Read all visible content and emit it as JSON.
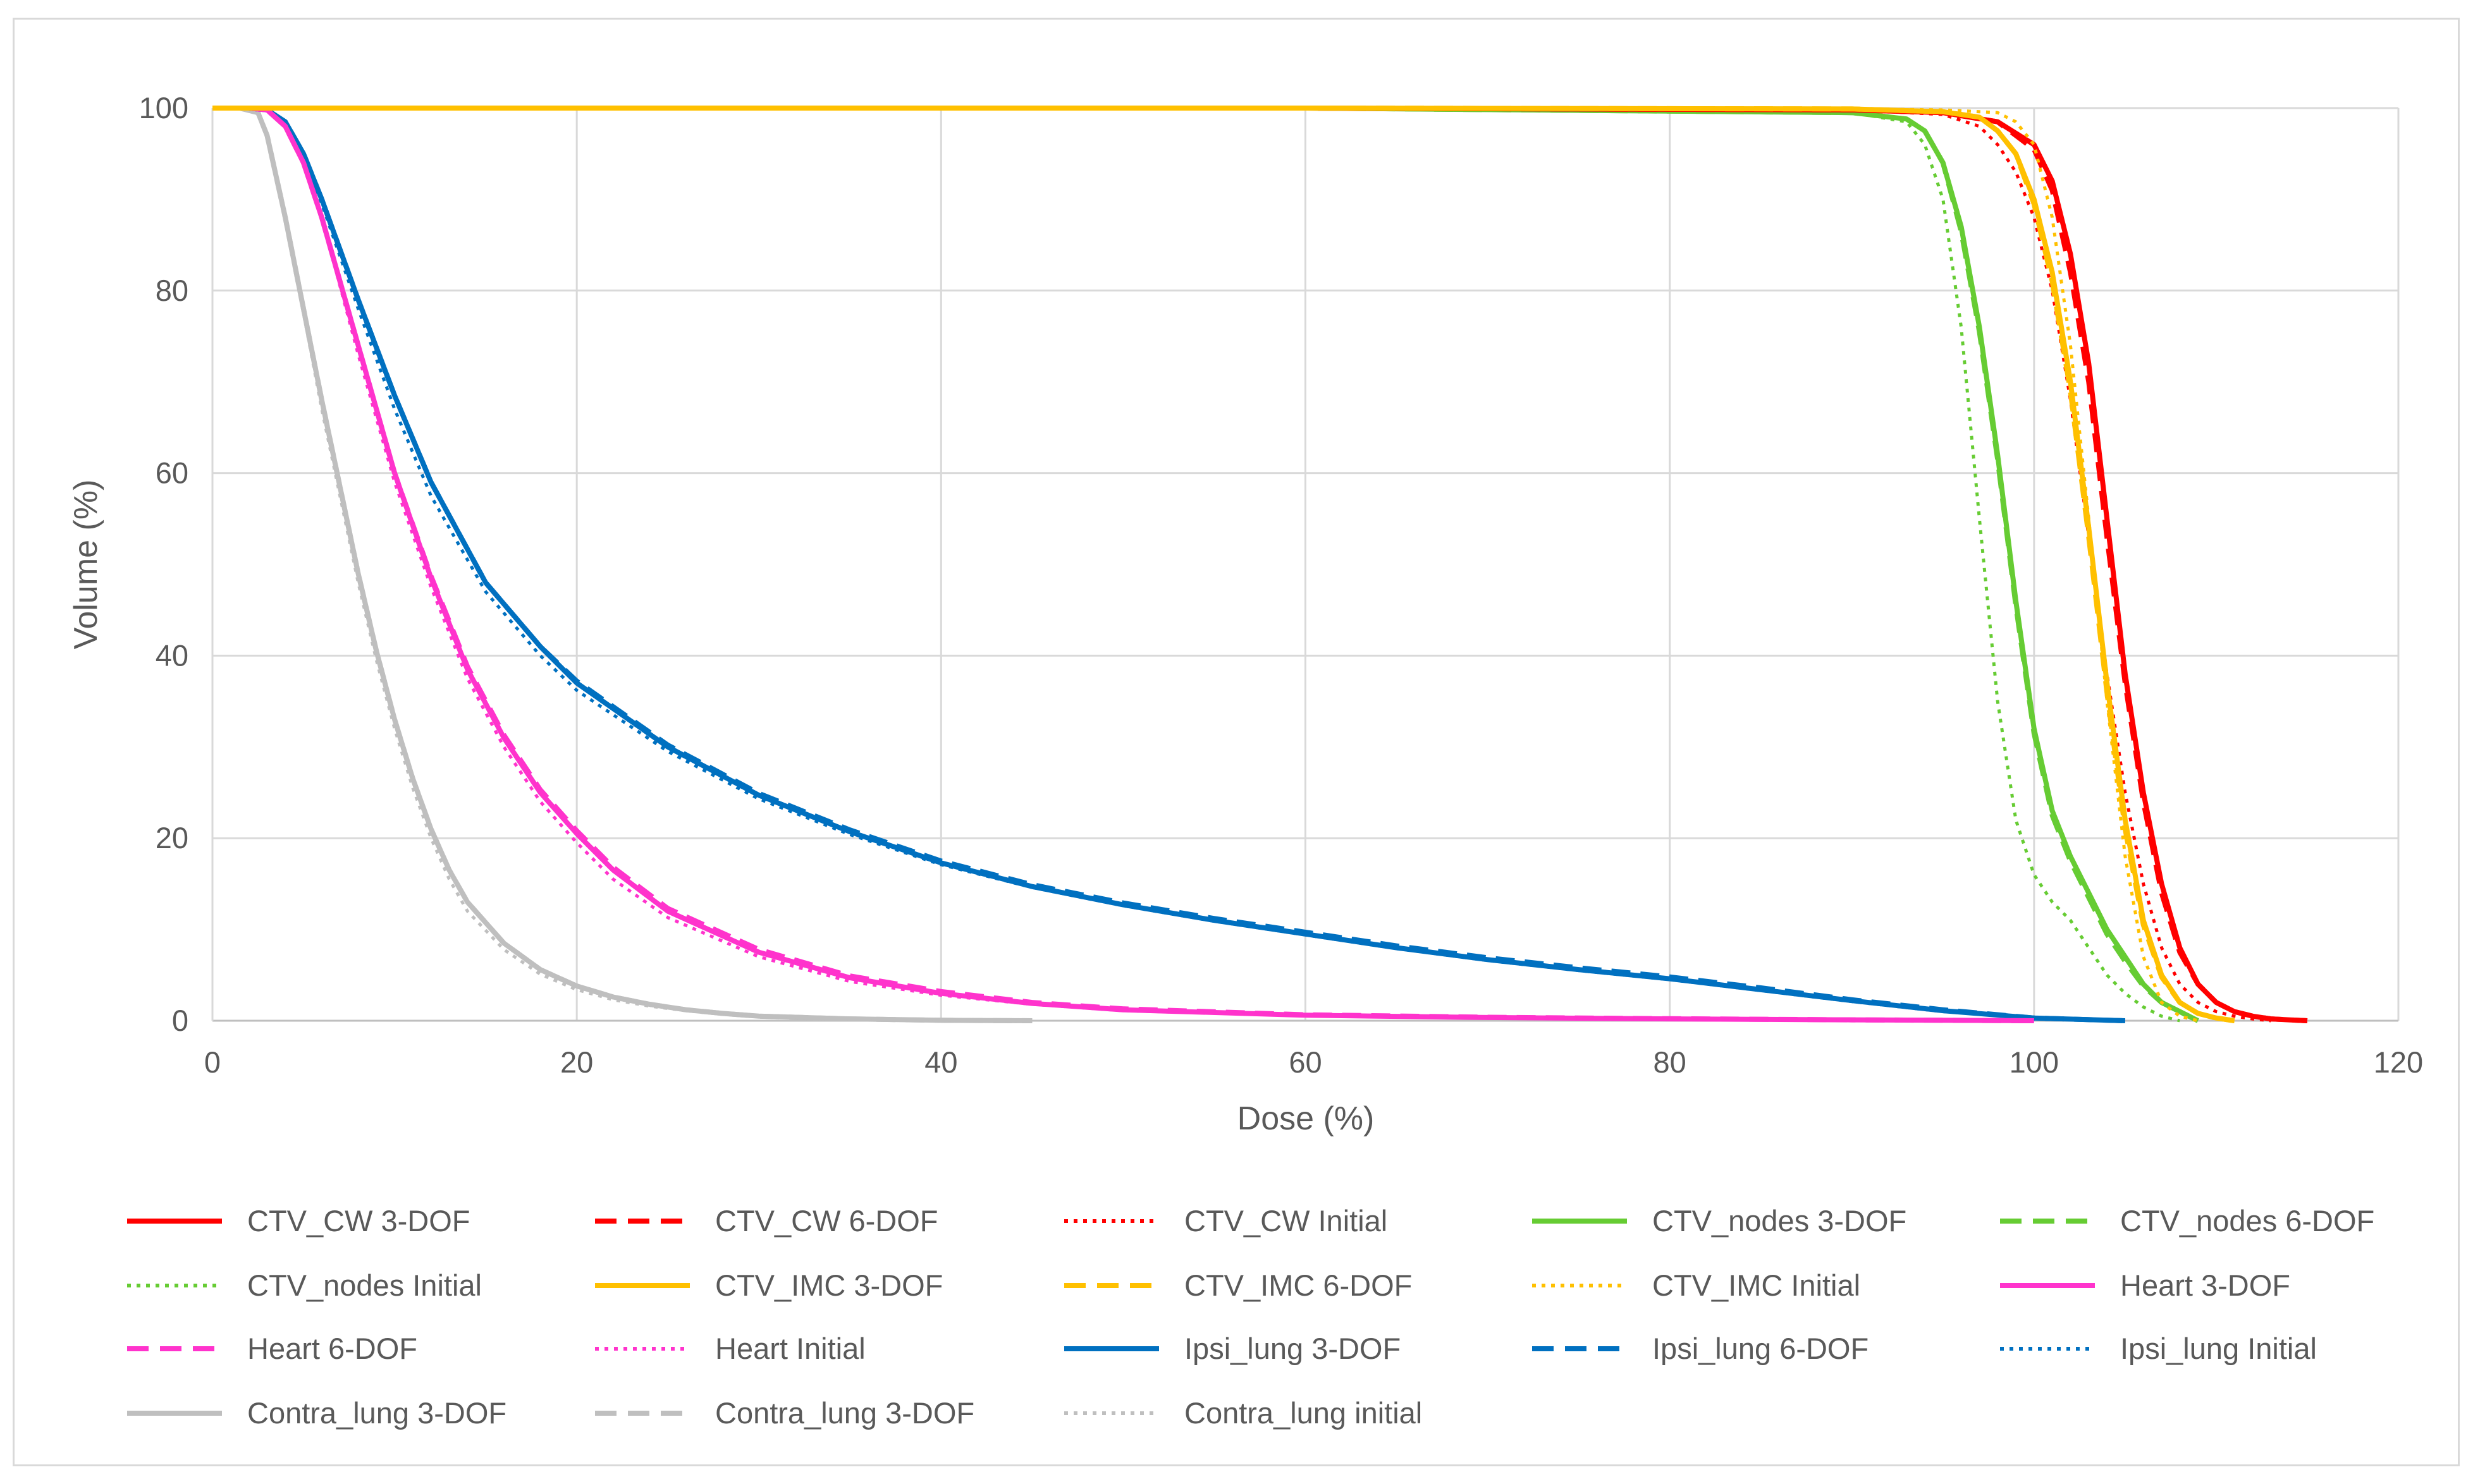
{
  "chart_data": {
    "type": "line",
    "title": "",
    "xlabel": "Dose (%)",
    "ylabel": "Volume (%)",
    "xlim": [
      0,
      120
    ],
    "ylim": [
      0,
      100
    ],
    "xticks": [
      0,
      20,
      40,
      60,
      80,
      100,
      120
    ],
    "yticks": [
      0,
      20,
      40,
      60,
      80,
      100
    ],
    "grid": true,
    "legend_position": "bottom",
    "series": [
      {
        "name": "CTV_CW 3-DOF",
        "color": "#ff0000",
        "dash": "solid",
        "x": [
          0,
          60,
          90,
          95,
          98,
          100,
          101,
          102,
          103,
          104,
          105,
          106,
          107,
          108,
          109,
          110,
          111,
          112,
          113,
          114,
          115
        ],
        "y": [
          100,
          100,
          99.8,
          99.5,
          98.5,
          96,
          92,
          84,
          72,
          55,
          38,
          25,
          15,
          8,
          4,
          2,
          1,
          0.5,
          0.2,
          0.1,
          0
        ]
      },
      {
        "name": "CTV_CW 6-DOF",
        "color": "#ff0000",
        "dash": "dash",
        "x": [
          0,
          60,
          90,
          95,
          98,
          100,
          101,
          102,
          103,
          104,
          105,
          106,
          107,
          108,
          109,
          110,
          111,
          112,
          113,
          114,
          115
        ],
        "y": [
          100,
          100,
          99.8,
          99.5,
          98.5,
          95.5,
          91,
          82,
          70,
          53,
          37,
          24,
          14,
          7.5,
          4,
          2,
          1,
          0.5,
          0.2,
          0.1,
          0
        ]
      },
      {
        "name": "CTV_CW Initial",
        "color": "#ff0000",
        "dash": "dot",
        "x": [
          0,
          60,
          90,
          95,
          97,
          98,
          99,
          100,
          101,
          102,
          103,
          104,
          105,
          106,
          107,
          108,
          109,
          110,
          111,
          112,
          113
        ],
        "y": [
          100,
          100,
          99.8,
          99.3,
          98,
          96,
          93,
          88,
          80,
          68,
          53,
          38,
          25,
          15,
          8,
          4,
          2,
          1,
          0.5,
          0.2,
          0
        ]
      },
      {
        "name": "CTV_nodes 3-DOF",
        "color": "#66cc33",
        "dash": "solid",
        "x": [
          0,
          60,
          90,
          93,
          94,
          95,
          96,
          97,
          98,
          99,
          100,
          101,
          102,
          103,
          104,
          105,
          106,
          107,
          108,
          109
        ],
        "y": [
          100,
          100,
          99.5,
          98.8,
          97.5,
          94,
          87,
          76,
          62,
          46,
          32,
          23,
          18,
          14,
          10,
          7,
          4,
          2,
          1,
          0
        ]
      },
      {
        "name": "CTV_nodes 6-DOF",
        "color": "#66cc33",
        "dash": "dash",
        "x": [
          0,
          60,
          90,
          93,
          94,
          95,
          96,
          97,
          98,
          99,
          100,
          101,
          102,
          103,
          104,
          105,
          106,
          107,
          108,
          109
        ],
        "y": [
          100,
          100,
          99.5,
          98.8,
          97.5,
          94,
          86.5,
          75.5,
          61.5,
          45.5,
          31.5,
          22.5,
          17.5,
          13.5,
          9.5,
          6.5,
          3.8,
          2,
          1,
          0
        ]
      },
      {
        "name": "CTV_nodes Initial",
        "color": "#66cc33",
        "dash": "dot",
        "x": [
          0,
          60,
          90,
          93,
          94,
          95,
          96,
          97,
          98,
          99,
          100,
          101,
          102,
          103,
          104,
          105,
          106,
          107,
          108
        ],
        "y": [
          100,
          100,
          99.5,
          98.5,
          96,
          90,
          76,
          55,
          35,
          22,
          16,
          13,
          11,
          8,
          5,
          3,
          1.5,
          0.5,
          0
        ]
      },
      {
        "name": "CTV_IMC 3-DOF",
        "color": "#ffc000",
        "dash": "solid",
        "x": [
          0,
          60,
          90,
          95,
          97,
          98,
          99,
          100,
          101,
          102,
          103,
          104,
          105,
          106,
          107,
          108,
          109,
          110,
          111
        ],
        "y": [
          100,
          100,
          99.9,
          99.6,
          99,
          97.5,
          95,
          90,
          82,
          70,
          54,
          37,
          22,
          11,
          5,
          2,
          0.8,
          0.3,
          0
        ]
      },
      {
        "name": "CTV_IMC 6-DOF",
        "color": "#ffc000",
        "dash": "dash",
        "x": [
          0,
          60,
          90,
          95,
          97,
          98,
          99,
          100,
          101,
          102,
          103,
          104,
          105,
          106,
          107,
          108,
          109,
          110,
          111
        ],
        "y": [
          100,
          100,
          99.9,
          99.6,
          99,
          97.5,
          95,
          89.5,
          81,
          69,
          53,
          36,
          21,
          10.5,
          4.8,
          2,
          0.8,
          0.3,
          0
        ]
      },
      {
        "name": "CTV_IMC Initial",
        "color": "#ffc000",
        "dash": "dot",
        "x": [
          0,
          60,
          90,
          95,
          98,
          99,
          100,
          101,
          102,
          103,
          104,
          105,
          106,
          107,
          108,
          109
        ],
        "y": [
          100,
          100,
          99.9,
          99.8,
          99.5,
          98.5,
          96,
          88,
          74,
          55,
          35,
          18,
          7,
          2,
          0.5,
          0
        ]
      },
      {
        "name": "Heart 3-DOF",
        "color": "#ff33cc",
        "dash": "solid",
        "x": [
          0,
          2,
          3,
          4,
          5,
          6,
          7,
          8,
          9,
          10,
          12,
          14,
          16,
          18,
          20,
          22,
          25,
          30,
          35,
          40,
          45,
          50,
          60,
          70,
          80,
          90,
          100
        ],
        "y": [
          100,
          100,
          99.8,
          98,
          94,
          88,
          81,
          74,
          67,
          60,
          48.5,
          38.5,
          31,
          25,
          20.5,
          16.5,
          12,
          7.5,
          4.7,
          3,
          1.9,
          1.2,
          0.6,
          0.35,
          0.2,
          0.1,
          0
        ]
      },
      {
        "name": "Heart 6-DOF",
        "color": "#ff33cc",
        "dash": "dash",
        "x": [
          0,
          2,
          3,
          4,
          5,
          6,
          7,
          8,
          9,
          10,
          12,
          14,
          16,
          18,
          20,
          22,
          25,
          30,
          35,
          40,
          45,
          50,
          60,
          70,
          80,
          90,
          100
        ],
        "y": [
          100,
          100,
          99.8,
          98,
          94,
          88,
          81,
          74,
          67,
          60,
          48.7,
          38.8,
          31.3,
          25.3,
          20.8,
          16.8,
          12.3,
          7.8,
          4.9,
          3.2,
          2,
          1.3,
          0.65,
          0.38,
          0.22,
          0.1,
          0
        ]
      },
      {
        "name": "Heart Initial",
        "color": "#ff33cc",
        "dash": "dot",
        "x": [
          0,
          2,
          3,
          4,
          5,
          6,
          7,
          8,
          9,
          10,
          12,
          14,
          16,
          18,
          20,
          22,
          25,
          30,
          35,
          40,
          45,
          50,
          60,
          70,
          80,
          90,
          100
        ],
        "y": [
          100,
          100,
          99.8,
          98,
          94,
          88,
          80.5,
          73,
          66,
          59,
          47.5,
          37.5,
          30,
          24,
          19.5,
          15.5,
          11.3,
          7,
          4.3,
          2.8,
          1.8,
          1.1,
          0.55,
          0.3,
          0.18,
          0.1,
          0
        ]
      },
      {
        "name": "Ipsi_lung 3-DOF",
        "color": "#0070c0",
        "dash": "solid",
        "x": [
          0,
          2,
          3,
          4,
          5,
          6,
          8,
          10,
          12,
          15,
          18,
          20,
          25,
          30,
          35,
          40,
          45,
          50,
          55,
          60,
          65,
          70,
          75,
          80,
          85,
          90,
          95,
          100,
          105
        ],
        "y": [
          100,
          100,
          99.8,
          98.5,
          95,
          90,
          79,
          68.5,
          59,
          48,
          41,
          37,
          30,
          24.7,
          20.7,
          17.3,
          14.7,
          12.7,
          11,
          9.5,
          8,
          6.7,
          5.6,
          4.6,
          3.4,
          2.2,
          1.1,
          0.3,
          0
        ]
      },
      {
        "name": "Ipsi_lung 6-DOF",
        "color": "#0070c0",
        "dash": "dash",
        "x": [
          0,
          2,
          3,
          4,
          5,
          6,
          8,
          10,
          12,
          15,
          18,
          20,
          25,
          30,
          35,
          40,
          45,
          50,
          55,
          60,
          65,
          70,
          75,
          80,
          85,
          90,
          95,
          100,
          105
        ],
        "y": [
          100,
          100,
          99.8,
          98.5,
          95,
          90,
          79,
          68.5,
          59,
          48,
          41,
          37.2,
          30.2,
          24.9,
          20.9,
          17.5,
          14.9,
          12.9,
          11.2,
          9.7,
          8.2,
          6.9,
          5.8,
          4.8,
          3.6,
          2.3,
          1.2,
          0.3,
          0
        ]
      },
      {
        "name": "Ipsi_lung Initial",
        "color": "#0070c0",
        "dash": "dot",
        "x": [
          0,
          2,
          3,
          4,
          5,
          6,
          8,
          10,
          12,
          15,
          18,
          20,
          25,
          30,
          35,
          40,
          45,
          50,
          55,
          60,
          65,
          70,
          75,
          80,
          85,
          90,
          95,
          100,
          105
        ],
        "y": [
          100,
          100,
          99.8,
          98.5,
          95,
          89.5,
          78,
          67,
          57.5,
          47,
          40,
          36.2,
          29.5,
          24.3,
          20.4,
          17.1,
          14.6,
          12.6,
          10.9,
          9.4,
          7.9,
          6.6,
          5.5,
          4.5,
          3.3,
          2.1,
          1,
          0.3,
          0
        ]
      },
      {
        "name": "Contra_lung 3-DOF",
        "color": "#bfbfbf",
        "dash": "solid",
        "x": [
          0,
          1.5,
          2.5,
          3,
          4,
          5,
          6,
          7,
          8,
          9,
          10,
          11,
          12,
          13,
          14,
          16,
          18,
          20,
          22,
          24,
          26,
          28,
          30,
          35,
          40,
          45
        ],
        "y": [
          100,
          100,
          99.5,
          97,
          88,
          78,
          68,
          58.5,
          49,
          40.5,
          33,
          26.5,
          21,
          16.5,
          13,
          8.5,
          5.6,
          3.8,
          2.6,
          1.8,
          1.2,
          0.8,
          0.5,
          0.2,
          0.05,
          0
        ]
      },
      {
        "name": "Contra_lung 3-DOF",
        "color": "#bfbfbf",
        "dash": "dash",
        "x": [
          0,
          1.5,
          2.5,
          3,
          4,
          5,
          6,
          7,
          8,
          9,
          10,
          11,
          12,
          13,
          14,
          16,
          18,
          20,
          22,
          24,
          26,
          28,
          30,
          35,
          40,
          45
        ],
        "y": [
          100,
          100,
          99.5,
          97,
          88,
          78,
          68,
          58.5,
          49,
          40.5,
          33,
          26.5,
          21,
          16.5,
          13,
          8.5,
          5.6,
          3.8,
          2.6,
          1.8,
          1.2,
          0.8,
          0.5,
          0.2,
          0.05,
          0
        ]
      },
      {
        "name": "Contra_lung initial",
        "color": "#bfbfbf",
        "dash": "dot",
        "x": [
          0,
          1.5,
          2.5,
          3,
          4,
          5,
          6,
          7,
          8,
          9,
          10,
          11,
          12,
          13,
          14,
          16,
          18,
          20,
          22,
          24,
          26,
          28,
          30,
          35,
          40,
          45
        ],
        "y": [
          100,
          100,
          99.5,
          97,
          87.5,
          77.5,
          67,
          57.5,
          48,
          39.5,
          32,
          25.5,
          20,
          15.5,
          12,
          7.8,
          5.1,
          3.4,
          2.3,
          1.6,
          1.1,
          0.7,
          0.45,
          0.18,
          0.05,
          0
        ]
      }
    ]
  }
}
